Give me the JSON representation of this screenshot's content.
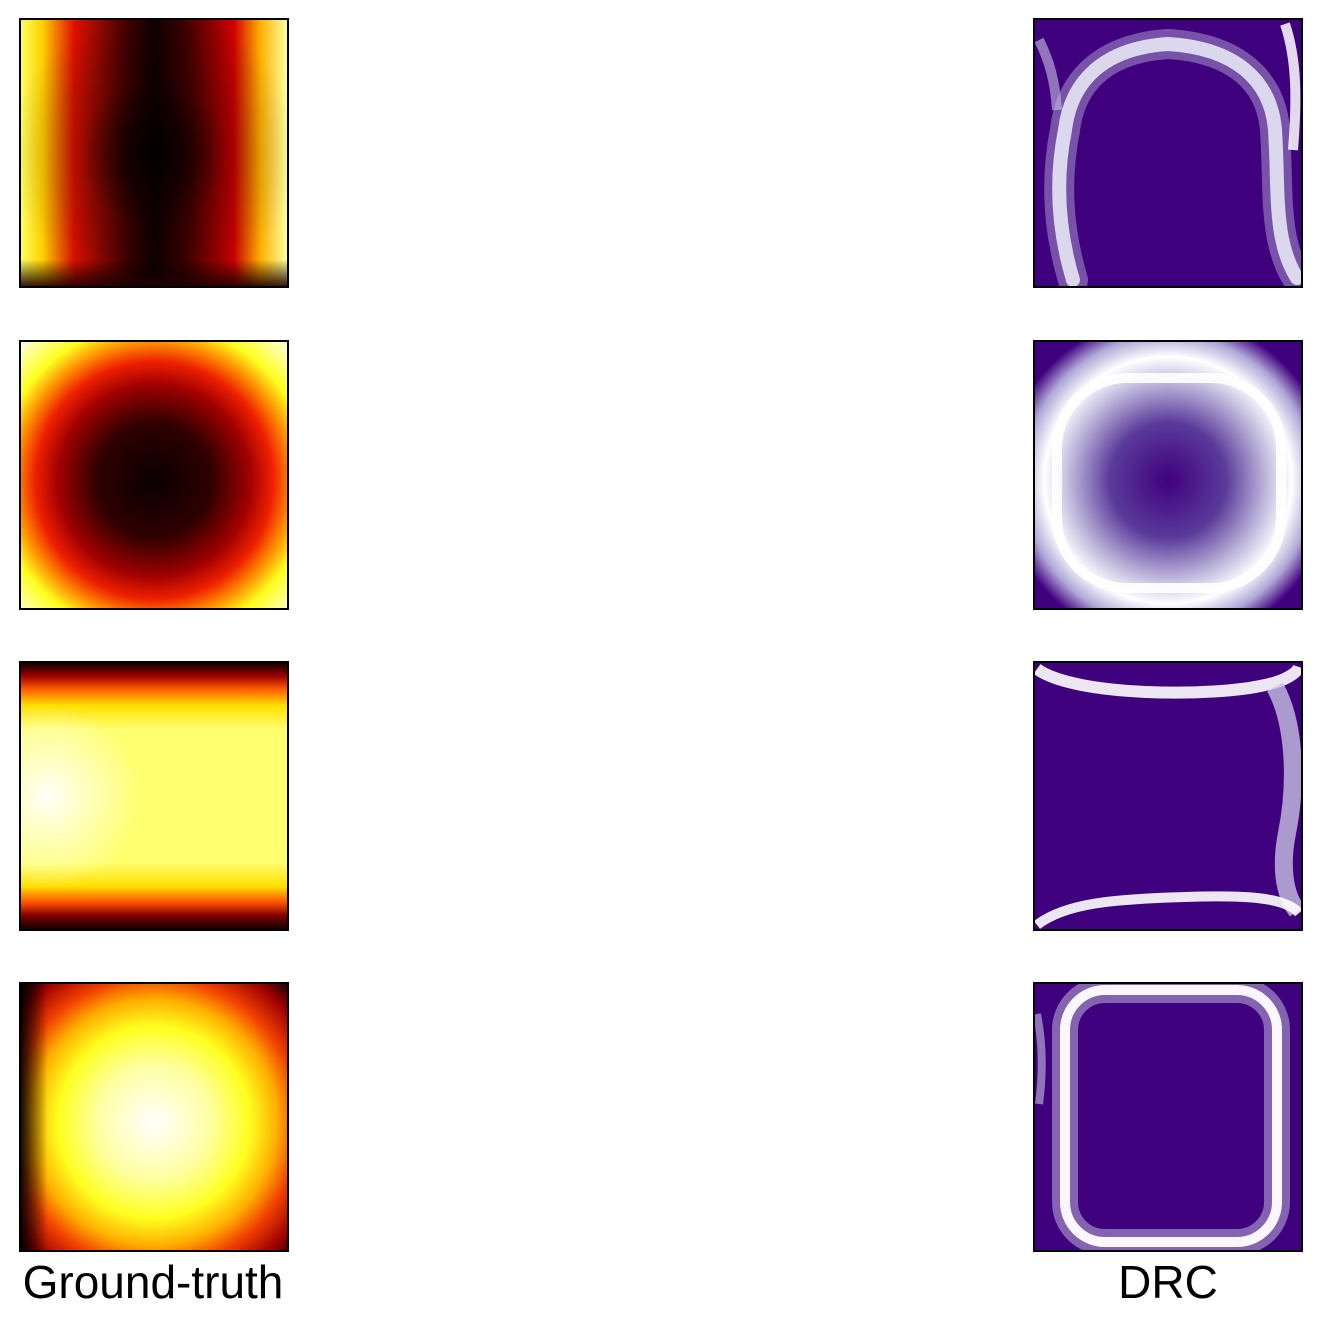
{
  "columns": {
    "left_label": "Ground-truth",
    "right_label": "DRC"
  },
  "colormaps": {
    "left": "hot",
    "right": "purple-white"
  },
  "colors": {
    "hot_black": "#000000",
    "hot_darkred": "#3a0000",
    "hot_red": "#d40000",
    "hot_orange": "#ff7a00",
    "hot_yellow": "#ffff00",
    "hot_white": "#ffffff",
    "purple": "#3f007d",
    "purple_mid": "#8a7fc0",
    "white": "#ffffff"
  },
  "rows": 4
}
